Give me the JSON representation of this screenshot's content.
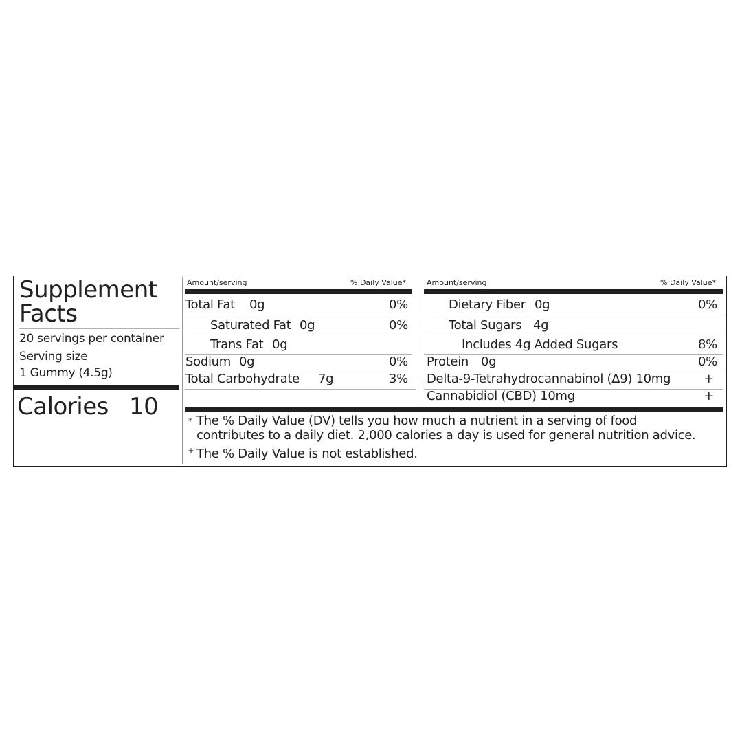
{
  "title_line1": "Supplement",
  "title_line2": "Facts",
  "servings_per_container": "20 servings per container",
  "serving_size_label": "Serving size",
  "serving_size_value": "1 Gummy (4.5g)",
  "calories_label": "Calories",
  "calories_value": "10",
  "col_header_amount": "Amount/serving",
  "col_header_dv": "% Daily Value*",
  "left_rows": [
    {
      "name": "Total Fat",
      "amount": "0g",
      "dv": "0%"
    },
    {
      "name": "Saturated Fat",
      "amount": "0g",
      "dv": "0%"
    },
    {
      "name": "Trans Fat",
      "amount": "0g",
      "dv": ""
    },
    {
      "name": "Sodium",
      "amount": "0g",
      "dv": "0%"
    },
    {
      "name": "Total Carbohydrate",
      "amount": "7g",
      "dv": "3%"
    }
  ],
  "right_rows": [
    {
      "name": "Dietary Fiber",
      "amount": "0g",
      "dv": "0%"
    },
    {
      "name": "Total Sugars",
      "amount": "4g",
      "dv": ""
    },
    {
      "name": "Includes 4g Added Sugars",
      "amount": "",
      "dv": "8%"
    },
    {
      "name": "Protein",
      "amount": "0g",
      "dv": "0%"
    },
    {
      "name": "Delta-9-Tetrahydrocannabinol (Δ9) 10mg",
      "amount": "",
      "dv": "+"
    },
    {
      "name": "Cannabidiol (CBD) 10mg",
      "amount": "",
      "dv": "+"
    }
  ],
  "footnote_star_symbol": "*",
  "footnote_star_line1": "The % Daily Value (DV) tells you how much a nutrient in a serving of food",
  "footnote_star_line2": "contributes to a daily diet. 2,000 calories a day is used for general nutrition advice.",
  "footnote_plus_symbol": "+",
  "footnote_plus": "The % Daily Value is not established."
}
